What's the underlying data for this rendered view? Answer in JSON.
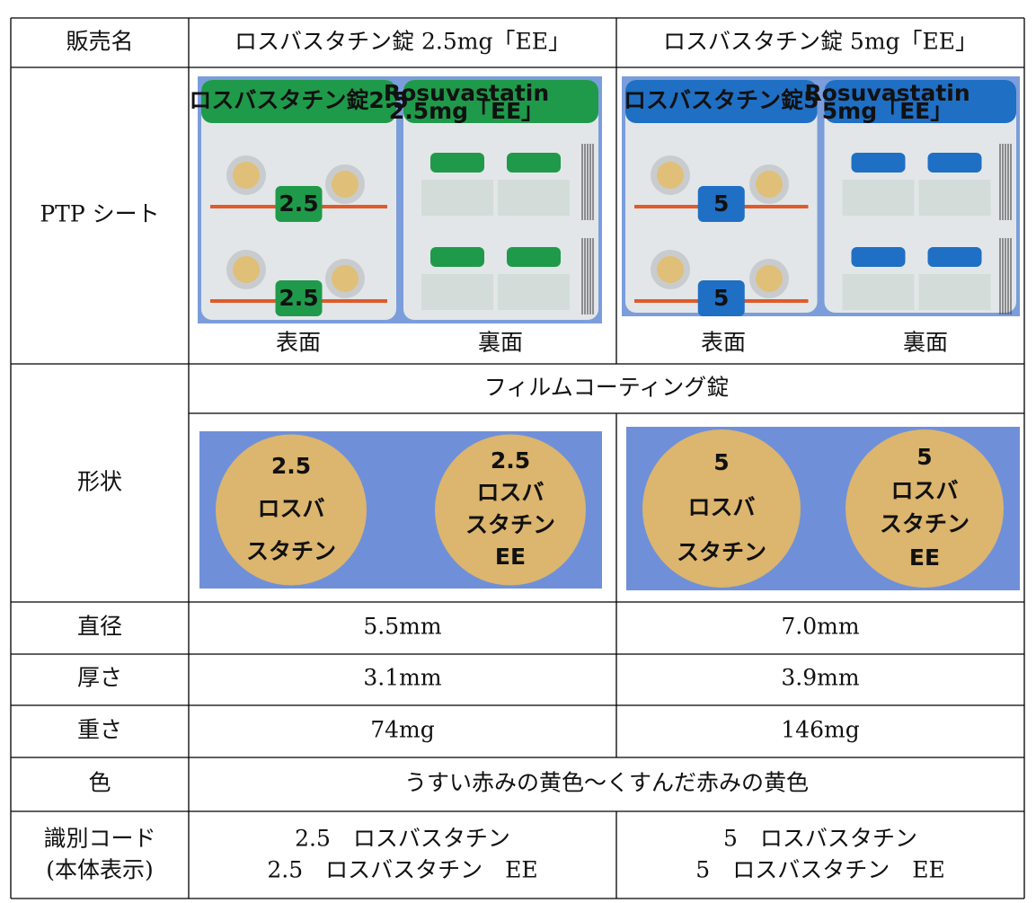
{
  "header": [
    "販売名",
    "ロスバスタチン錠 2.5mg「EE」",
    "ロスバスタチン錠 5mg「EE」"
  ],
  "ptp": {
    "label": "PTP シート",
    "sides": [
      "表面",
      "裏面",
      "表面",
      "裏面"
    ],
    "images": [
      {
        "front_title": "ロスバスタチン錠2.5",
        "front_badge": "2.5",
        "back_title": "Rosuvastatin",
        "back_sub": "2.5mg「EE」"
      },
      {
        "front_title": "ロスバスタチン錠5",
        "front_badge": "5",
        "back_title": "Rosuvastatin",
        "back_sub": "5mg「EE」"
      }
    ]
  },
  "shape": {
    "label": "形状",
    "coating": "フィルムコーティング錠",
    "tablets": [
      {
        "front": [
          "2.5",
          "ロスバ",
          "スタチン"
        ],
        "back": [
          "2.5",
          "ロスバ",
          "スタチン",
          "EE"
        ]
      },
      {
        "front": [
          "5",
          "ロスバ",
          "スタチン"
        ],
        "back": [
          "5",
          "ロスバ",
          "スタチン",
          "EE"
        ]
      }
    ]
  },
  "rows": [
    [
      "直径",
      "5.5mm",
      "7.0mm"
    ],
    [
      "厚さ",
      "3.1mm",
      "3.9mm"
    ],
    [
      "重さ",
      "74mg",
      "146mg"
    ]
  ],
  "color": [
    "色",
    "うすい赤みの黄色～くすんだ赤みの黄色"
  ],
  "code": {
    "label": [
      "識別コード",
      "(本体表示)"
    ],
    "values": [
      [
        "2.5　ロスバスタチン",
        "2.5　ロスバスタチン　EE"
      ],
      [
        "5　ロスバスタチン",
        "5　ロスバスタチン　EE"
      ]
    ]
  }
}
